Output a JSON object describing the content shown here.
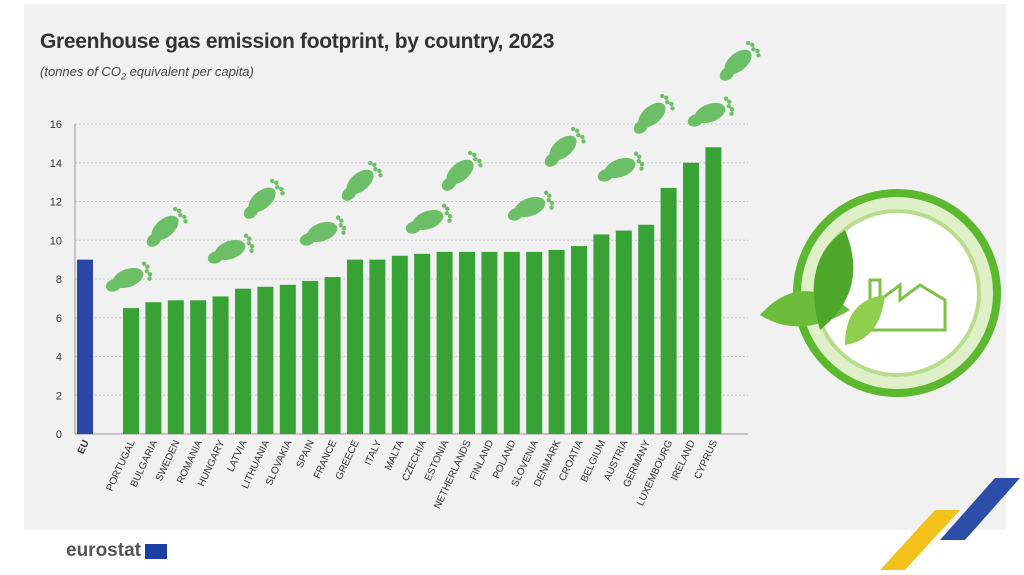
{
  "chart_data": {
    "type": "bar",
    "title": "Greenhouse gas emission footprint, by country, 2023",
    "subtitle_pre": "(tonnes of CO",
    "subtitle_sub": "2",
    "subtitle_post": " equivalent per capita)",
    "categories": [
      "EU",
      "PORTUGAL",
      "BULGARIA",
      "SWEDEN",
      "ROMANIA",
      "HUNGARY",
      "LATVIA",
      "LITHUANIA",
      "SLOVAKIA",
      "SPAIN",
      "FRANCE",
      "GREECE",
      "ITALY",
      "MALTA",
      "CZECHIA",
      "ESTONIA",
      "NETHERLANDS",
      "FINLAND",
      "POLAND",
      "SLOVENIA",
      "DENMARK",
      "CROATIA",
      "BELGIUM",
      "AUSTRIA",
      "GERMANY",
      "LUXEMBOURG",
      "IRELAND",
      "CYPRUS"
    ],
    "values": [
      9.0,
      6.5,
      6.8,
      6.9,
      6.9,
      7.1,
      7.5,
      7.6,
      7.7,
      7.9,
      8.1,
      9.0,
      9.0,
      9.2,
      9.3,
      9.4,
      9.4,
      9.4,
      9.4,
      9.4,
      9.5,
      9.7,
      10.3,
      10.5,
      10.8,
      12.7,
      14.0,
      14.8
    ],
    "ylim": [
      0,
      16
    ],
    "yticks": [
      "0",
      "2",
      "4",
      "6",
      "8",
      "10",
      "12",
      "14",
      "16"
    ],
    "grid": true,
    "colors": {
      "eu": "#2a46a8",
      "countries": "#36a334",
      "footprints": "#6cbf66"
    }
  },
  "branding": {
    "logo": "eurostat"
  }
}
